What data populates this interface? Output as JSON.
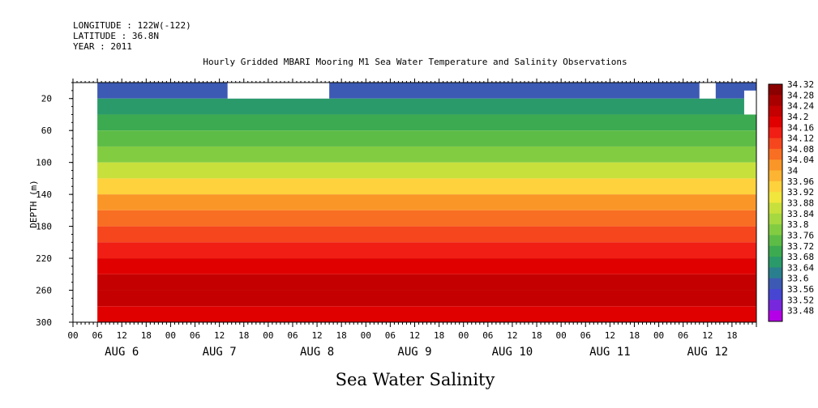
{
  "meta": {
    "longitude": "LONGITUDE : 122W(-122)",
    "latitude": "LATITUDE : 36.8N",
    "year": "YEAR : 2011"
  },
  "chart_data": {
    "type": "heatmap",
    "title": "Hourly Gridded MBARI Mooring M1 Sea Water Temperature and Salinity Observations",
    "xlabel": "Sea Water Salinity",
    "ylabel": "DEPTH (m)",
    "ylim": [
      300,
      0
    ],
    "y_ticks": [
      20,
      60,
      100,
      140,
      180,
      220,
      260,
      300
    ],
    "x_hour_ticks": [
      "00",
      "06",
      "12",
      "18",
      "00",
      "06",
      "12",
      "18",
      "00",
      "06",
      "12",
      "18",
      "00",
      "06",
      "12",
      "18",
      "00",
      "06",
      "12",
      "18",
      "00",
      "06",
      "12",
      "18",
      "00",
      "06",
      "12",
      "18"
    ],
    "x_day_labels": [
      "AUG 6",
      "AUG 7",
      "AUG 8",
      "AUG 9",
      "AUG 10",
      "AUG 11",
      "AUG 12"
    ],
    "xlim_hours": [
      0,
      168
    ],
    "colorbar_levels": [
      "34.32",
      "34.28",
      "34.24",
      "34.2",
      "34.16",
      "34.12",
      "34.08",
      "34.04",
      "34",
      "33.96",
      "33.92",
      "33.88",
      "33.84",
      "33.8",
      "33.76",
      "33.72",
      "33.68",
      "33.64",
      "33.6",
      "33.56",
      "33.52",
      "33.48"
    ],
    "colorbar_colors": [
      "#8b0000",
      "#a80000",
      "#c40000",
      "#e00000",
      "#f01e14",
      "#f5461e",
      "#f86e22",
      "#fa9628",
      "#fcb432",
      "#fdd23c",
      "#f0e63c",
      "#c8e03c",
      "#a6d840",
      "#82cc42",
      "#5cbc46",
      "#3caa50",
      "#2a9a6a",
      "#2a7f8e",
      "#3c5ab4",
      "#4646d2",
      "#7828dc",
      "#b400e6"
    ],
    "salinity_profile": [
      {
        "depth": 10,
        "value": 33.62
      },
      {
        "depth": 30,
        "value": 33.68
      },
      {
        "depth": 50,
        "value": 33.72
      },
      {
        "depth": 70,
        "value": 33.78
      },
      {
        "depth": 90,
        "value": 33.82
      },
      {
        "depth": 110,
        "value": 33.88
      },
      {
        "depth": 130,
        "value": 33.96
      },
      {
        "depth": 150,
        "value": 34.06
      },
      {
        "depth": 170,
        "value": 34.1
      },
      {
        "depth": 190,
        "value": 34.12
      },
      {
        "depth": 210,
        "value": 34.16
      },
      {
        "depth": 230,
        "value": 34.22
      },
      {
        "depth": 250,
        "value": 34.26
      },
      {
        "depth": 270,
        "value": 34.24
      },
      {
        "depth": 290,
        "value": 34.2
      }
    ],
    "missing_regions": [
      {
        "start_hour": 0,
        "end_hour": 6,
        "depth_from": 0,
        "depth_to": 300
      },
      {
        "start_hour": 38,
        "end_hour": 63,
        "depth_from": 0,
        "depth_to": 20
      },
      {
        "start_hour": 154,
        "end_hour": 158,
        "depth_from": 0,
        "depth_to": 20
      },
      {
        "start_hour": 165,
        "end_hour": 168,
        "depth_from": 10,
        "depth_to": 40
      }
    ]
  }
}
